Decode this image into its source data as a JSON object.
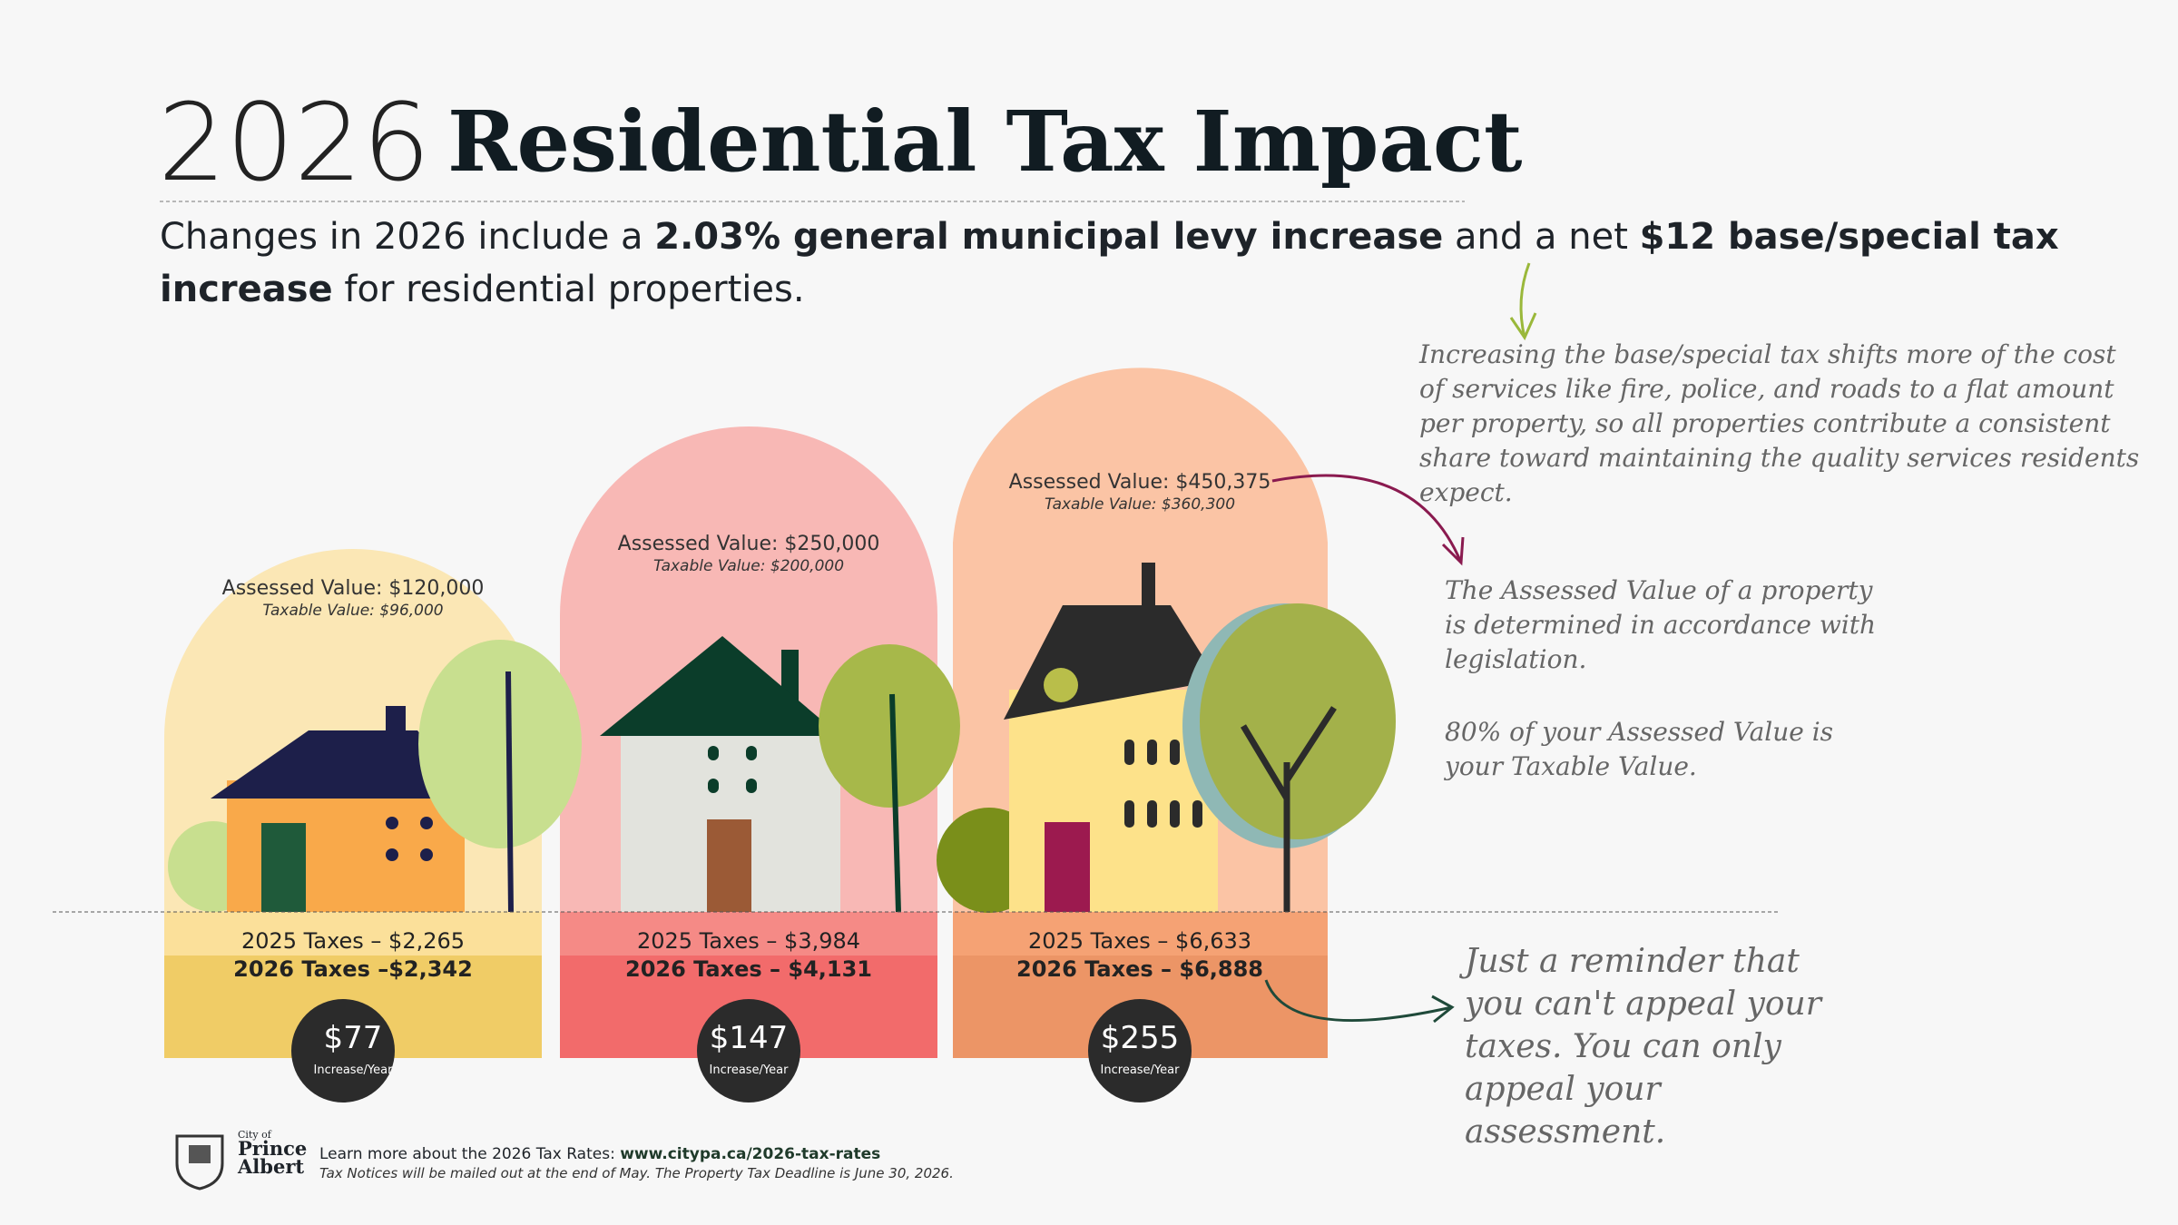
{
  "header": {
    "year": "2026",
    "title": "Residential Tax Impact"
  },
  "subtitle": {
    "parts": [
      "Changes in 2026 include a",
      "2.03% general municipal levy increase",
      "and a net",
      "$12 base/special tax increase",
      "for residential properties."
    ]
  },
  "houses": [
    {
      "assessed": "Assessed Value: $120,000",
      "taxable": "Taxable Value: $96,000",
      "taxes_2025": "2025 Taxes – $2,265",
      "taxes_2026": "2026 Taxes –$2,342",
      "increase": "$77",
      "increase_label": "Increase/Year"
    },
    {
      "assessed": "Assessed Value: $250,000",
      "taxable": "Taxable Value: $200,000",
      "taxes_2025": "2025 Taxes – $3,984",
      "taxes_2026": "2026 Taxes – $4,131",
      "increase": "$147",
      "increase_label": "Increase/Year"
    },
    {
      "assessed": "Assessed Value: $450,375",
      "taxable": "Taxable Value: $360,300",
      "taxes_2025": "2025 Taxes – $6,633",
      "taxes_2026": "2026 Taxes – $6,888",
      "increase": "$255",
      "increase_label": "Increase/Year"
    }
  ],
  "notes": {
    "base_tax": "Increasing the base/special tax shifts more of the cost of services like fire, police, and roads to a flat amount per property, so all properties contribute a consistent share toward maintaining the quality services residents expect.",
    "assessed": "The Assessed Value of a property is determined in accordance with legislation.",
    "taxable": "80% of your Assessed Value is your Taxable Value.",
    "appeal": "Just a reminder that you can't appeal your taxes. You can only appeal your assessment."
  },
  "footer": {
    "logo_small": "City of",
    "logo_name": "Prince Albert",
    "learn_more": "Learn more about the 2026 Tax Rates:",
    "url": "www.citypa.ca/2026-tax-rates",
    "notice": "Tax Notices will be mailed out at the end of May. The Property Tax Deadline is June 30, 2026."
  }
}
